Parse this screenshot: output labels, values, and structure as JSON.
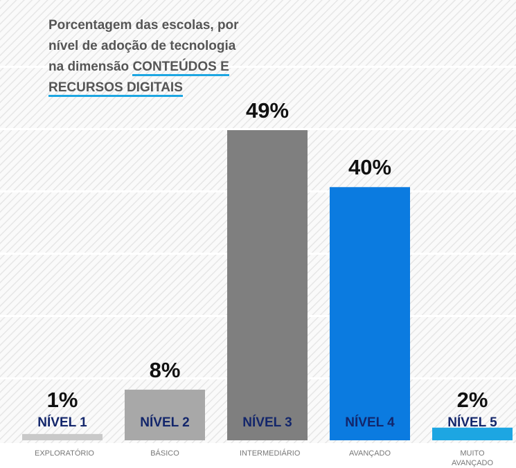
{
  "chart_data": {
    "type": "bar",
    "title": "Porcentagem das escolas, por nível de adoção de tecnologia na dimensão",
    "title_emphasis": "CONTEÚDOS E RECURSOS DIGITAIS",
    "categories": [
      "NÍVEL 1",
      "NÍVEL 2",
      "NÍVEL 3",
      "NÍVEL 4",
      "NÍVEL 5"
    ],
    "subcategories": [
      "EXPLORATÓRIO",
      "BÁSICO",
      "INTERMEDIÁRIO",
      "AVANÇADO",
      "MUITO AVANÇADO"
    ],
    "values": [
      1,
      8,
      49,
      40,
      2
    ],
    "value_labels": [
      "1%",
      "8%",
      "49%",
      "40%",
      "2%"
    ],
    "colors": [
      "#c9c9c9",
      "#a8a8a8",
      "#7f7f7f",
      "#0b7be0",
      "#1da6e2"
    ]
  }
}
